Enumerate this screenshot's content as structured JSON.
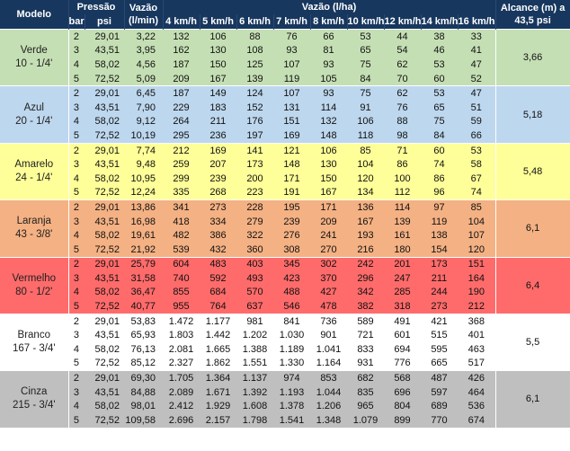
{
  "header": {
    "modelo": "Modelo",
    "pressao": "Pressão",
    "bar": "bar",
    "psi": "psi",
    "vazao_line1": "Vazão",
    "vazao_line2": "(l/min)",
    "vazao_ha": "Vazão (l/ha)",
    "speeds": [
      "4 km/h",
      "5 km/h",
      "6 km/h",
      "7 km/h",
      "8 km/h",
      "10 km/h",
      "12 km/h",
      "14 km/h",
      "16 km/h"
    ],
    "alcance_line1": "Alcance (m) a",
    "alcance_line2": "43,5 psi"
  },
  "colors": {
    "header": "#17375e",
    "verde": "#c5dfb4",
    "azul": "#bdd7ee",
    "amarelo": "#ffff99",
    "laranja": "#f4b183",
    "vermelho": "#ff6b6b",
    "branco": "#ffffff",
    "cinza": "#bfbfbf"
  },
  "groups": [
    {
      "name": "Verde",
      "size": "10 - 1/4'",
      "color": "#c5dfb4",
      "alcance": "3,66",
      "rows": [
        {
          "bar": "2",
          "psi": "29,01",
          "vazao": "3,22",
          "v": [
            "132",
            "106",
            "88",
            "76",
            "66",
            "53",
            "44",
            "38",
            "33"
          ]
        },
        {
          "bar": "3",
          "psi": "43,51",
          "vazao": "3,95",
          "v": [
            "162",
            "130",
            "108",
            "93",
            "81",
            "65",
            "54",
            "46",
            "41"
          ]
        },
        {
          "bar": "4",
          "psi": "58,02",
          "vazao": "4,56",
          "v": [
            "187",
            "150",
            "125",
            "107",
            "93",
            "75",
            "62",
            "53",
            "47"
          ]
        },
        {
          "bar": "5",
          "psi": "72,52",
          "vazao": "5,09",
          "v": [
            "209",
            "167",
            "139",
            "119",
            "105",
            "84",
            "70",
            "60",
            "52"
          ]
        }
      ]
    },
    {
      "name": "Azul",
      "size": "20 - 1/4'",
      "color": "#bdd7ee",
      "alcance": "5,18",
      "rows": [
        {
          "bar": "2",
          "psi": "29,01",
          "vazao": "6,45",
          "v": [
            "187",
            "149",
            "124",
            "107",
            "93",
            "75",
            "62",
            "53",
            "47"
          ]
        },
        {
          "bar": "3",
          "psi": "43,51",
          "vazao": "7,90",
          "v": [
            "229",
            "183",
            "152",
            "131",
            "114",
            "91",
            "76",
            "65",
            "51"
          ]
        },
        {
          "bar": "4",
          "psi": "58,02",
          "vazao": "9,12",
          "v": [
            "264",
            "211",
            "176",
            "151",
            "132",
            "106",
            "88",
            "75",
            "59"
          ]
        },
        {
          "bar": "5",
          "psi": "72,52",
          "vazao": "10,19",
          "v": [
            "295",
            "236",
            "197",
            "169",
            "148",
            "118",
            "98",
            "84",
            "66"
          ]
        }
      ]
    },
    {
      "name": "Amarelo",
      "size": "24 - 1/4'",
      "color": "#ffff99",
      "alcance": "5,48",
      "rows": [
        {
          "bar": "2",
          "psi": "29,01",
          "vazao": "7,74",
          "v": [
            "212",
            "169",
            "141",
            "121",
            "106",
            "85",
            "71",
            "60",
            "53"
          ]
        },
        {
          "bar": "3",
          "psi": "43,51",
          "vazao": "9,48",
          "v": [
            "259",
            "207",
            "173",
            "148",
            "130",
            "104",
            "86",
            "74",
            "58"
          ]
        },
        {
          "bar": "4",
          "psi": "58,02",
          "vazao": "10,95",
          "v": [
            "299",
            "239",
            "200",
            "171",
            "150",
            "120",
            "100",
            "86",
            "67"
          ]
        },
        {
          "bar": "5",
          "psi": "72,52",
          "vazao": "12,24",
          "v": [
            "335",
            "268",
            "223",
            "191",
            "167",
            "134",
            "112",
            "96",
            "74"
          ]
        }
      ]
    },
    {
      "name": "Laranja",
      "size": "43 - 3/8'",
      "color": "#f4b183",
      "alcance": "6,1",
      "rows": [
        {
          "bar": "2",
          "psi": "29,01",
          "vazao": "13,86",
          "v": [
            "341",
            "273",
            "228",
            "195",
            "171",
            "136",
            "114",
            "97",
            "85"
          ]
        },
        {
          "bar": "3",
          "psi": "43,51",
          "vazao": "16,98",
          "v": [
            "418",
            "334",
            "279",
            "239",
            "209",
            "167",
            "139",
            "119",
            "104"
          ]
        },
        {
          "bar": "4",
          "psi": "58,02",
          "vazao": "19,61",
          "v": [
            "482",
            "386",
            "322",
            "276",
            "241",
            "193",
            "161",
            "138",
            "107"
          ]
        },
        {
          "bar": "5",
          "psi": "72,52",
          "vazao": "21,92",
          "v": [
            "539",
            "432",
            "360",
            "308",
            "270",
            "216",
            "180",
            "154",
            "120"
          ]
        }
      ]
    },
    {
      "name": "Vermelho",
      "size": "80 - 1/2'",
      "color": "#ff6b6b",
      "alcance": "6,4",
      "rows": [
        {
          "bar": "2",
          "psi": "29,01",
          "vazao": "25,79",
          "v": [
            "604",
            "483",
            "403",
            "345",
            "302",
            "242",
            "201",
            "173",
            "151"
          ]
        },
        {
          "bar": "3",
          "psi": "43,51",
          "vazao": "31,58",
          "v": [
            "740",
            "592",
            "493",
            "423",
            "370",
            "296",
            "247",
            "211",
            "164"
          ]
        },
        {
          "bar": "4",
          "psi": "58,02",
          "vazao": "36,47",
          "v": [
            "855",
            "684",
            "570",
            "488",
            "427",
            "342",
            "285",
            "244",
            "190"
          ]
        },
        {
          "bar": "5",
          "psi": "72,52",
          "vazao": "40,77",
          "v": [
            "955",
            "764",
            "637",
            "546",
            "478",
            "382",
            "318",
            "273",
            "212"
          ]
        }
      ]
    },
    {
      "name": "Branco",
      "size": "167 - 3/4'",
      "color": "#ffffff",
      "alcance": "5,5",
      "rows": [
        {
          "bar": "2",
          "psi": "29,01",
          "vazao": "53,83",
          "v": [
            "1.472",
            "1.177",
            "981",
            "841",
            "736",
            "589",
            "491",
            "421",
            "368"
          ]
        },
        {
          "bar": "3",
          "psi": "43,51",
          "vazao": "65,93",
          "v": [
            "1.803",
            "1.442",
            "1.202",
            "1.030",
            "901",
            "721",
            "601",
            "515",
            "401"
          ]
        },
        {
          "bar": "4",
          "psi": "58,02",
          "vazao": "76,13",
          "v": [
            "2.081",
            "1.665",
            "1.388",
            "1.189",
            "1.041",
            "833",
            "694",
            "595",
            "463"
          ]
        },
        {
          "bar": "5",
          "psi": "72,52",
          "vazao": "85,12",
          "v": [
            "2.327",
            "1.862",
            "1.551",
            "1.330",
            "1.164",
            "931",
            "776",
            "665",
            "517"
          ]
        }
      ]
    },
    {
      "name": "Cinza",
      "size": "215 - 3/4'",
      "color": "#bfbfbf",
      "alcance": "6,1",
      "rows": [
        {
          "bar": "2",
          "psi": "29,01",
          "vazao": "69,30",
          "v": [
            "1.705",
            "1.364",
            "1.137",
            "974",
            "853",
            "682",
            "568",
            "487",
            "426"
          ]
        },
        {
          "bar": "3",
          "psi": "43,51",
          "vazao": "84,88",
          "v": [
            "2.089",
            "1.671",
            "1.392",
            "1.193",
            "1.044",
            "835",
            "696",
            "597",
            "464"
          ]
        },
        {
          "bar": "4",
          "psi": "58,02",
          "vazao": "98,01",
          "v": [
            "2.412",
            "1.929",
            "1.608",
            "1.378",
            "1.206",
            "965",
            "804",
            "689",
            "536"
          ]
        },
        {
          "bar": "5",
          "psi": "72,52",
          "vazao": "109,58",
          "v": [
            "2.696",
            "2.157",
            "1.798",
            "1.541",
            "1.348",
            "1.079",
            "899",
            "770",
            "674"
          ]
        }
      ]
    }
  ]
}
